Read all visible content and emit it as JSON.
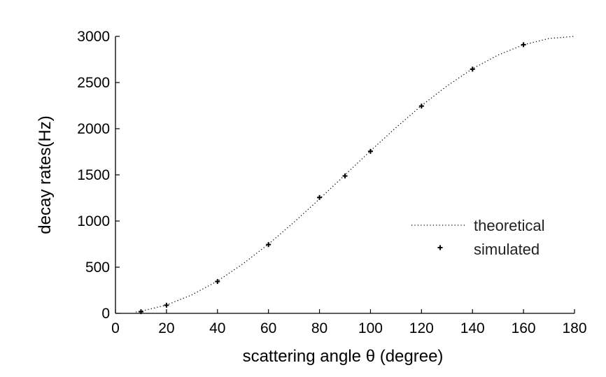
{
  "chart_data": {
    "type": "line",
    "title": "",
    "xlabel": "scattering angle θ (degree)",
    "ylabel": "decay rates(Hz)",
    "xlim": [
      0,
      180
    ],
    "ylim": [
      0,
      3000
    ],
    "xticks": [
      0,
      20,
      40,
      60,
      80,
      100,
      120,
      140,
      160,
      180
    ],
    "yticks": [
      0,
      500,
      1000,
      1500,
      2000,
      2500,
      3000
    ],
    "grid": false,
    "legend": {
      "placement": "right",
      "entries": [
        "theoretical",
        "simulated"
      ]
    },
    "series": [
      {
        "name": "theoretical",
        "style": "dotted",
        "x": [
          8,
          10,
          20,
          30,
          40,
          50,
          60,
          70,
          80,
          90,
          100,
          110,
          120,
          130,
          140,
          150,
          160,
          170,
          180
        ],
        "y": [
          15,
          23,
          90,
          201,
          349,
          536,
          750,
          987,
          1239,
          1500,
          1760,
          2012,
          2250,
          2463,
          2649,
          2798,
          2909,
          2977,
          3000
        ]
      },
      {
        "name": "simulated",
        "style": "markers",
        "x": [
          10,
          20,
          40,
          60,
          80,
          90,
          100,
          120,
          140,
          160
        ],
        "y": [
          18,
          88,
          345,
          745,
          1255,
          1488,
          1755,
          2245,
          2645,
          2910
        ]
      }
    ]
  }
}
